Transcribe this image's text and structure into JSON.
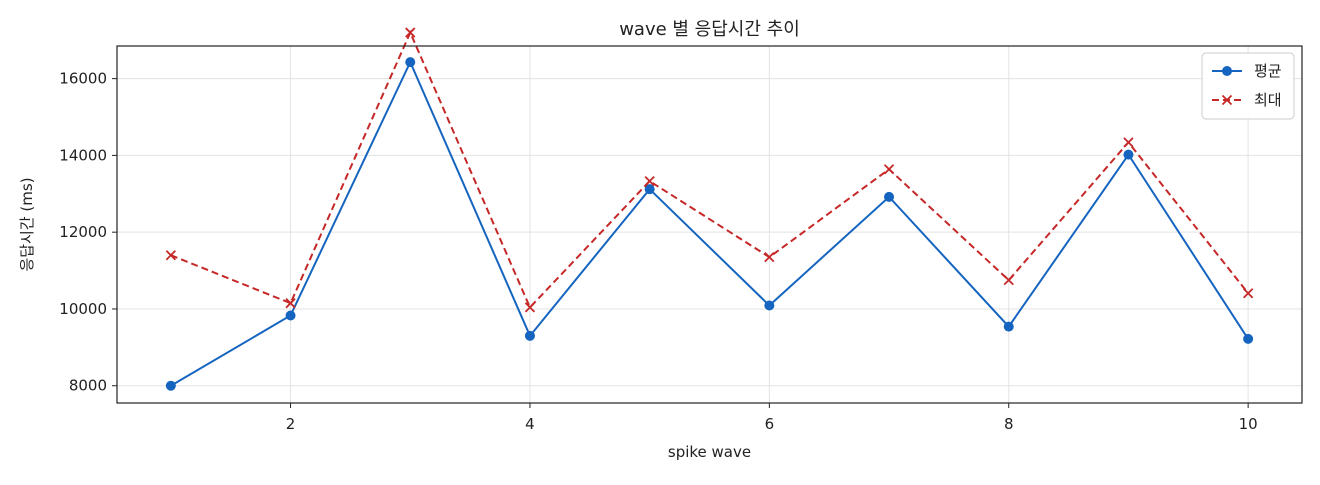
{
  "chart_data": {
    "type": "line",
    "title": "wave 별 응답시간 추이",
    "xlabel": "spike wave",
    "ylabel": "응답시간 (ms)",
    "xlim": [
      0.55,
      10.45
    ],
    "ylim": [
      7550,
      16850
    ],
    "x": [
      1,
      2,
      3,
      4,
      5,
      6,
      7,
      8,
      9,
      10
    ],
    "xticks": [
      2,
      4,
      6,
      8,
      10
    ],
    "yticks": [
      8000,
      10000,
      12000,
      14000,
      16000
    ],
    "grid": true,
    "legend_position": "top-right",
    "series": [
      {
        "name": "평균",
        "values": [
          8000,
          9830,
          16430,
          9300,
          13120,
          10090,
          12920,
          9540,
          14020,
          9220
        ],
        "color": "#1565c0",
        "line_style": "solid",
        "marker": "circle"
      },
      {
        "name": "최대",
        "values": [
          11400,
          10150,
          17200,
          10040,
          13330,
          11350,
          13640,
          10750,
          14340,
          10410
        ],
        "color": "#c62828",
        "line_style": "dashed",
        "marker": "x"
      }
    ]
  }
}
